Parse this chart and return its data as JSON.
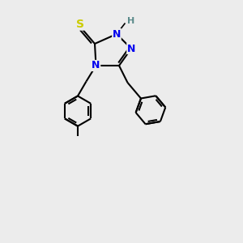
{
  "bg_color": "#ececec",
  "atom_color_N": "#0000ee",
  "atom_color_S": "#cccc00",
  "atom_color_H": "#5a8a8a",
  "atom_color_C": "#000000",
  "line_color": "#000000",
  "line_width": 1.5,
  "font_size_atom": 9,
  "fig_size": [
    3.0,
    3.0
  ],
  "dpi": 100,
  "xlim": [
    0,
    10
  ],
  "ylim": [
    0,
    10
  ]
}
